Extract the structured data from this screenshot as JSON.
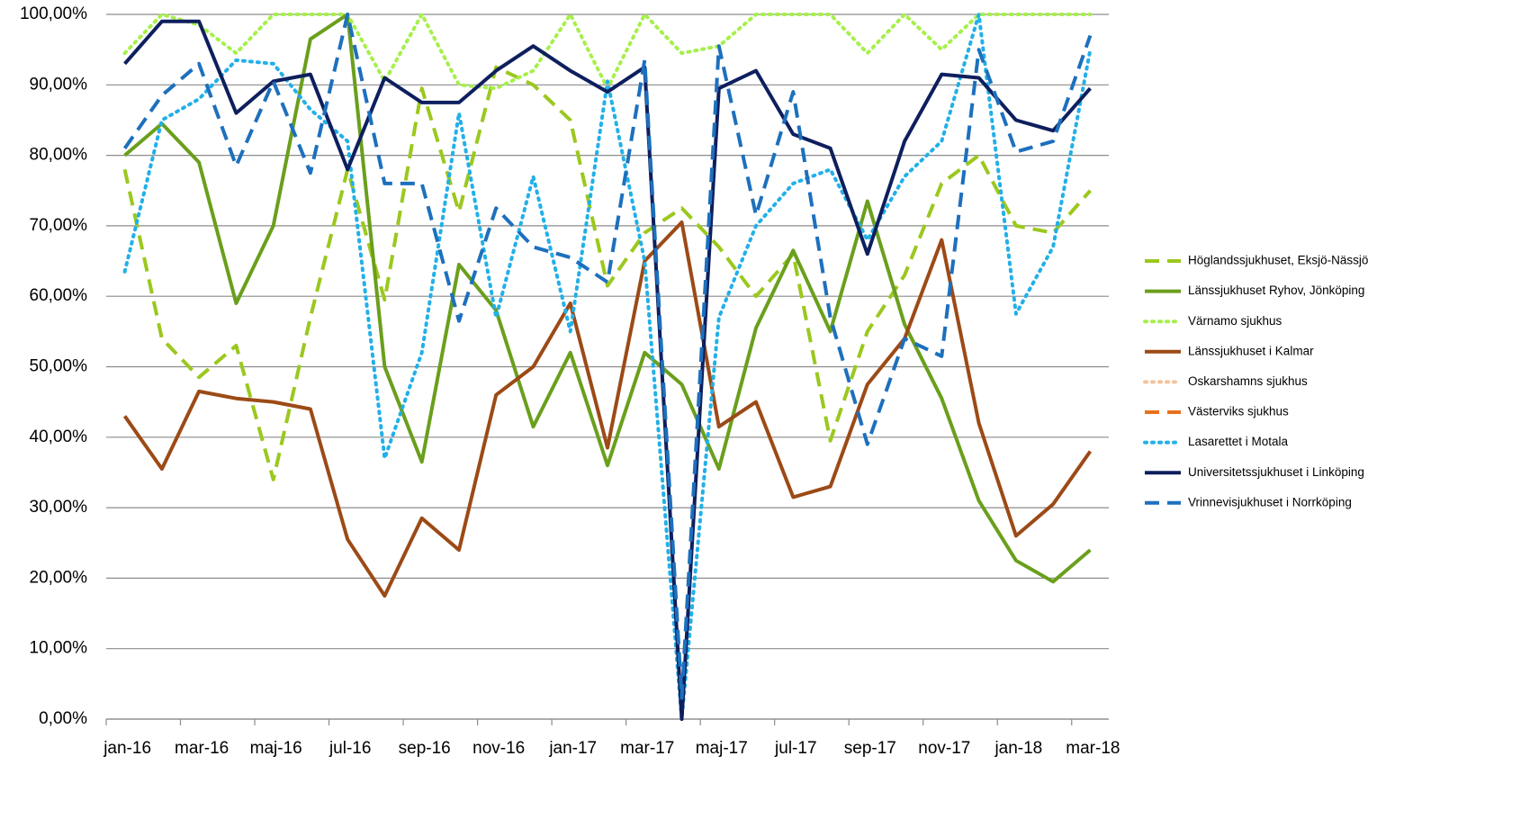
{
  "chart_data": {
    "type": "line",
    "categories": [
      "jan-16",
      null,
      "mar-16",
      null,
      "maj-16",
      null,
      "jul-16",
      null,
      "sep-16",
      null,
      "nov-16",
      null,
      "jan-17",
      null,
      "mar-17",
      null,
      "maj-17",
      null,
      "jul-17",
      null,
      "sep-17",
      null,
      "nov-17",
      null,
      "jan-18",
      null,
      "mar-18"
    ],
    "ylim": [
      0,
      100
    ],
    "yticks": [
      {
        "value": 0,
        "label": "0,00%"
      },
      {
        "value": 10,
        "label": "10,00%"
      },
      {
        "value": 20,
        "label": "20,00%"
      },
      {
        "value": 30,
        "label": "30,00%"
      },
      {
        "value": 40,
        "label": "40,00%"
      },
      {
        "value": 50,
        "label": "50,00%"
      },
      {
        "value": 60,
        "label": "60,00%"
      },
      {
        "value": 70,
        "label": "70,00%"
      },
      {
        "value": 80,
        "label": "80,00%"
      },
      {
        "value": 90,
        "label": "90,00%"
      },
      {
        "value": 100,
        "label": "100,00%"
      }
    ],
    "grid": true,
    "legend": "right",
    "series": [
      {
        "name": "Höglandssjukhuset, Eksjö-Nässjö",
        "color": "#9bc81e",
        "style": "dashed",
        "values": [
          78,
          54,
          48.5,
          53,
          34,
          57,
          78,
          59.5,
          89.5,
          72,
          92.5,
          90,
          85,
          61.5,
          69,
          72.5,
          67,
          60,
          66,
          39.5,
          55,
          63,
          76,
          80,
          70,
          69,
          75
        ]
      },
      {
        "name": "Länssjukhuset Ryhov, Jönköping",
        "color": "#6a9f1c",
        "style": "solid",
        "values": [
          80,
          84.5,
          79,
          59,
          70,
          96.5,
          100,
          50,
          36.5,
          64.5,
          58,
          41.5,
          52,
          36,
          52,
          47.5,
          35.5,
          55.5,
          66.5,
          55,
          73.5,
          56,
          45.5,
          31,
          22.5,
          19.5,
          24
        ]
      },
      {
        "name": "Värnamo sjukhus",
        "color": "#a6f04a",
        "style": "dotted",
        "values": [
          94.5,
          100,
          98.5,
          94.5,
          100,
          100,
          100,
          90.5,
          100,
          90,
          89.5,
          92,
          100,
          89.5,
          100,
          94.5,
          95.5,
          100,
          100,
          100,
          94.5,
          100,
          95,
          100,
          100,
          100,
          100
        ]
      },
      {
        "name": "Länssjukhuset i Kalmar",
        "color": "#9c4a16",
        "style": "solid",
        "values": [
          43,
          35.5,
          46.5,
          45.5,
          45,
          44,
          25.5,
          17.5,
          28.5,
          24,
          46,
          50,
          59,
          38.5,
          65,
          70.5,
          41.5,
          45,
          31.5,
          33,
          47.5,
          54,
          68,
          42,
          26,
          30.5,
          38
        ]
      },
      {
        "name": "Oskarshamns sjukhus",
        "color": "#f5c29a",
        "style": "dotted",
        "values": [
          null,
          null,
          null,
          null,
          null,
          null,
          null,
          null,
          null,
          null,
          null,
          null,
          null,
          null,
          null,
          null,
          null,
          null,
          null,
          null,
          null,
          null,
          null,
          null,
          null,
          null,
          null
        ]
      },
      {
        "name": "Västerviks sjukhus",
        "color": "#e8701c",
        "style": "dashed",
        "values": [
          null,
          null,
          null,
          null,
          null,
          null,
          null,
          null,
          null,
          null,
          null,
          null,
          null,
          null,
          null,
          null,
          null,
          null,
          null,
          null,
          null,
          null,
          null,
          null,
          null,
          null,
          null
        ]
      },
      {
        "name": "Lasarettet i Motala",
        "color": "#22b0e8",
        "style": "dotted",
        "values": [
          63.5,
          85,
          88,
          93.5,
          93,
          86.5,
          82,
          37,
          52,
          86,
          57,
          77,
          55,
          90.5,
          65,
          0,
          57,
          70,
          76,
          78,
          68,
          77,
          82,
          100,
          57.5,
          67,
          95
        ]
      },
      {
        "name": "Universitetssjukhuset i Linköping",
        "color": "#0e1f5e",
        "style": "solid",
        "values": [
          93,
          99,
          99,
          86,
          90.5,
          91.5,
          78,
          91,
          87.5,
          87.5,
          92,
          95.5,
          92,
          89,
          92.5,
          0,
          89.5,
          92,
          83,
          81,
          66,
          82,
          91.5,
          91,
          85,
          83.5,
          89.5
        ]
      },
      {
        "name": "Vrinnevisjukhuset i Norrköping",
        "color": "#1d70bd",
        "style": "dashed",
        "values": [
          81,
          88.5,
          93,
          78.5,
          90.5,
          77.5,
          100,
          76,
          76,
          56.5,
          72.5,
          67,
          65.5,
          62,
          93.5,
          3,
          95.5,
          71.5,
          89,
          57,
          39,
          54,
          51.5,
          95,
          80.5,
          82,
          97
        ]
      }
    ]
  }
}
